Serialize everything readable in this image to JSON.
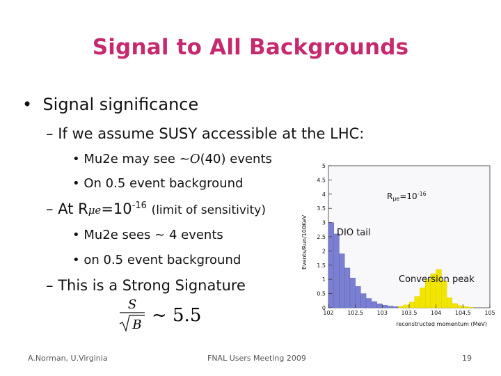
{
  "title": "Signal to All Backgrounds",
  "bullets": {
    "b1": "Signal significance",
    "b2": "If we assume SUSY accessible at the LHC:",
    "b3a_pre": "Mu2e may see ~",
    "b3a_sym": "O",
    "b3a_post": "(40) events",
    "b3b": "On 0.5 event background",
    "b4_pre": "At R",
    "b4_mu": "μe",
    "b4_eq": "=10",
    "b4_exp": "-16",
    "b4_post": "(limit of sensitivity)",
    "b5": "Mu2e sees ~ 4 events",
    "b6": "on 0.5 event background",
    "b7": "This is a Strong Signature",
    "formula_num": "S",
    "formula_den": "B",
    "formula_rhs": "~ 5.5"
  },
  "footer": {
    "author": "A.Norman, U.Virginia",
    "meeting": "FNAL Users Meeting 2009",
    "page": "19"
  },
  "chart_data": {
    "type": "bar",
    "ylabel": "Events/Run/100KeV",
    "xlabel": "reconstructed momentum (MeV)",
    "annotation_rate_pre": "R",
    "annotation_rate_mu": "μe",
    "annotation_rate_eq": "=10",
    "annotation_rate_exp": "-16",
    "annotations": [
      "DIO tail",
      "Conversion peak"
    ],
    "xlim": [
      102,
      105
    ],
    "ylim": [
      0,
      5
    ],
    "xticks": [
      "102",
      "102.5",
      "103",
      "103.5",
      "104",
      "104.5",
      "105"
    ],
    "yticks": [
      "0",
      "0.5",
      "1",
      "1.5",
      "2",
      "2.5",
      "3",
      "3.5",
      "4",
      "4.5",
      "5"
    ],
    "bin_width": 0.1,
    "series": [
      {
        "name": "DIO tail",
        "color": "#7a7fd2",
        "bin_start": [
          102.0,
          102.1,
          102.2,
          102.3,
          102.4,
          102.5,
          102.6,
          102.7,
          102.8,
          102.9,
          103.0,
          103.1,
          103.2,
          103.3,
          103.4,
          103.5
        ],
        "values": [
          3.0,
          2.6,
          1.9,
          1.4,
          1.05,
          0.75,
          0.5,
          0.33,
          0.22,
          0.14,
          0.09,
          0.06,
          0.04,
          0.03,
          0.02,
          0.01
        ]
      },
      {
        "name": "Conversion peak",
        "color": "#f2e600",
        "bin_start": [
          103.3,
          103.4,
          103.5,
          103.6,
          103.7,
          103.8,
          103.9,
          104.0,
          104.1,
          104.2,
          104.3,
          104.4,
          104.5,
          104.6
        ],
        "values": [
          0.05,
          0.1,
          0.2,
          0.4,
          0.7,
          1.0,
          1.2,
          1.35,
          0.95,
          0.35,
          0.15,
          0.08,
          0.04,
          0.02
        ]
      }
    ]
  }
}
